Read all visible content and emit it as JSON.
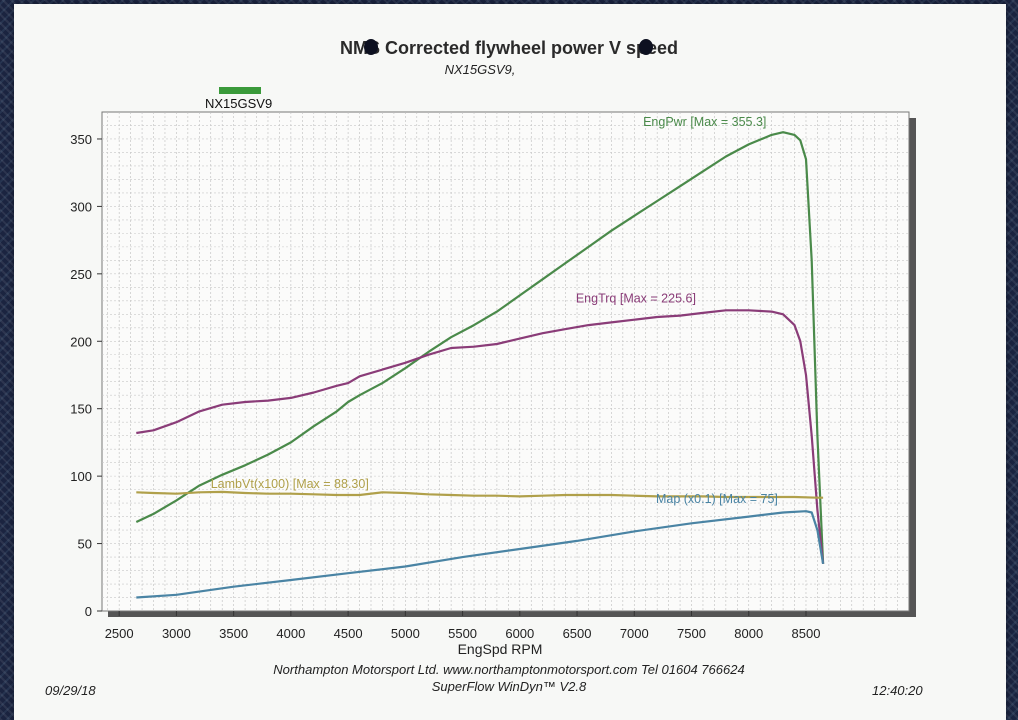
{
  "chart_data": {
    "type": "line",
    "title": "NMS Corrected flywheel power V speed",
    "subtitle": "NX15GSV9,",
    "legend": [
      "NX15GSV9"
    ],
    "legend_placement": "top-left",
    "xlabel": "EngSpd  RPM",
    "ylabel": "",
    "xlim": [
      2350,
      9400
    ],
    "ylim": [
      0,
      370
    ],
    "grid": true,
    "x_ticks": [
      "2500",
      "3000",
      "3500",
      "4000",
      "4500",
      "5000",
      "5500",
      "6000",
      "6500",
      "7000",
      "7500",
      "8000",
      "8500"
    ],
    "y_ticks": [
      "0",
      "50",
      "100",
      "150",
      "200",
      "250",
      "300",
      "350"
    ],
    "series": [
      {
        "name": "EngPwr",
        "label": "EngPwr [Max = 355.3]",
        "color": "#4a8a4a",
        "x": [
          2650,
          2800,
          3000,
          3200,
          3400,
          3600,
          3800,
          4000,
          4200,
          4400,
          4500,
          4600,
          4800,
          5000,
          5200,
          5400,
          5600,
          5800,
          6000,
          6200,
          6400,
          6600,
          6800,
          7000,
          7200,
          7400,
          7600,
          7800,
          8000,
          8200,
          8300,
          8400,
          8450,
          8500,
          8550,
          8600,
          8650
        ],
        "y": [
          66,
          72,
          82,
          93,
          101,
          108,
          116,
          125,
          137,
          148,
          155,
          160,
          169,
          180,
          192,
          203,
          212,
          222,
          234,
          246,
          258,
          270,
          282,
          293,
          304,
          315,
          326,
          337,
          346,
          353,
          355,
          353,
          349,
          335,
          260,
          130,
          35
        ]
      },
      {
        "name": "EngTrq",
        "label": "EngTrq [Max = 225.6]",
        "color": "#8a3c78",
        "x": [
          2650,
          2800,
          3000,
          3200,
          3400,
          3600,
          3800,
          4000,
          4200,
          4400,
          4500,
          4600,
          4800,
          5000,
          5200,
          5400,
          5600,
          5800,
          6000,
          6200,
          6400,
          6600,
          6800,
          7000,
          7200,
          7400,
          7600,
          7800,
          8000,
          8200,
          8300,
          8400,
          8450,
          8500,
          8550,
          8600,
          8650
        ],
        "y": [
          132,
          134,
          140,
          148,
          153,
          155,
          156,
          158,
          162,
          167,
          169,
          174,
          179,
          184,
          190,
          195,
          196,
          198,
          202,
          206,
          209,
          212,
          214,
          216,
          218,
          219,
          221,
          223,
          223,
          222,
          220,
          212,
          200,
          175,
          130,
          75,
          35
        ]
      },
      {
        "name": "LambVt(x100)",
        "label": "LambVt(x100) [Max = 88.30]",
        "color": "#b0a04a",
        "x": [
          2650,
          2800,
          3000,
          3200,
          3400,
          3600,
          3800,
          4000,
          4200,
          4400,
          4600,
          4800,
          5000,
          5200,
          5400,
          5600,
          5800,
          6000,
          6200,
          6400,
          6600,
          6800,
          7000,
          7200,
          7400,
          7600,
          7800,
          8000,
          8200,
          8400,
          8600,
          8650
        ],
        "y": [
          88,
          87.5,
          87,
          88,
          88.3,
          87.5,
          87,
          87,
          86.5,
          86,
          86,
          88,
          87.5,
          86.5,
          86,
          85.5,
          85.5,
          85,
          85.5,
          86,
          86,
          86,
          85.5,
          85,
          85,
          85,
          84.5,
          84.5,
          84.5,
          84.5,
          84,
          84
        ]
      },
      {
        "name": "Map (x0.1)",
        "label": "Map  (x0.1) [Max = 75]",
        "color": "#4a84a4",
        "x": [
          2650,
          3000,
          3500,
          4000,
          4500,
          5000,
          5500,
          6000,
          6500,
          7000,
          7500,
          8000,
          8300,
          8500,
          8550,
          8600,
          8650
        ],
        "y": [
          10,
          12,
          18,
          23,
          28,
          33,
          40,
          46,
          52,
          59,
          65,
          70,
          73,
          74,
          73,
          60,
          35
        ]
      }
    ]
  },
  "footer": {
    "company": "Northampton Motorsport Ltd. www.northamptonmotorsport.com Tel 01604 766624",
    "software": "SuperFlow WinDyn™ V2.8",
    "date": "09/29/18",
    "time": "12:40:20"
  }
}
